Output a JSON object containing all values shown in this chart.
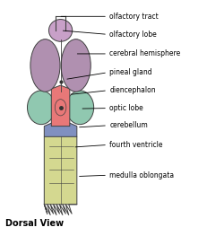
{
  "bg_color": "#ffffff",
  "title": "Dorsal View",
  "colors": {
    "olfactory_lobe": "#c8a0c8",
    "cerebral_hemisphere": "#b090b0",
    "diencephalon": "#e87878",
    "optic_lobe": "#90c8b0",
    "cerebellum": "#8090c0",
    "medulla": "#d4d890",
    "outline": "#404040"
  },
  "annotations": [
    {
      "label": "olfactory tract",
      "pt": [
        0.28,
        0.935
      ],
      "txt": [
        0.52,
        0.935
      ]
    },
    {
      "label": "olfactory lobe",
      "pt": [
        0.29,
        0.875
      ],
      "txt": [
        0.52,
        0.858
      ]
    },
    {
      "label": "cerebral hemisphere",
      "pt": [
        0.36,
        0.775
      ],
      "txt": [
        0.52,
        0.775
      ]
    },
    {
      "label": "pineal gland",
      "pt": [
        0.31,
        0.665
      ],
      "txt": [
        0.52,
        0.695
      ]
    },
    {
      "label": "diencephalon",
      "pt": [
        0.33,
        0.6
      ],
      "txt": [
        0.52,
        0.618
      ]
    },
    {
      "label": "optic lobe",
      "pt": [
        0.385,
        0.54
      ],
      "txt": [
        0.52,
        0.542
      ]
    },
    {
      "label": "cerebellum",
      "pt": [
        0.37,
        0.46
      ],
      "txt": [
        0.52,
        0.468
      ]
    },
    {
      "label": "fourth ventricle",
      "pt": [
        0.35,
        0.375
      ],
      "txt": [
        0.52,
        0.385
      ]
    },
    {
      "label": "medulla oblongata",
      "pt": [
        0.37,
        0.25
      ],
      "txt": [
        0.52,
        0.255
      ]
    }
  ]
}
